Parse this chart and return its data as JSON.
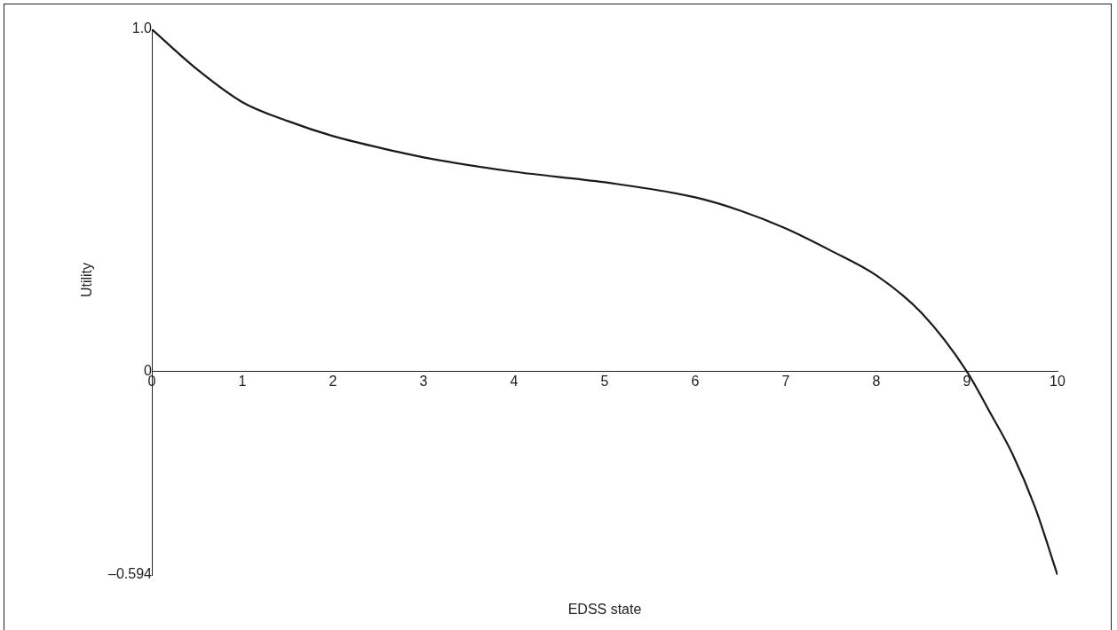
{
  "chart_data": {
    "type": "line",
    "xlabel": "EDSS state",
    "ylabel": "Utility",
    "x": [
      0,
      0.5,
      1,
      1.5,
      2,
      2.5,
      3,
      4,
      5,
      6,
      6.5,
      7,
      7.5,
      8,
      8.5,
      9,
      9.25,
      9.5,
      9.75,
      10
    ],
    "series": [
      {
        "color": "#1a1a1a",
        "values": [
          1.0,
          0.883,
          0.787,
          0.732,
          0.688,
          0.655,
          0.626,
          0.584,
          0.553,
          0.509,
          0.47,
          0.418,
          0.353,
          0.281,
          0.171,
          0,
          -0.117,
          -0.239,
          -0.395,
          -0.594
        ]
      }
    ],
    "xlim": [
      0,
      10
    ],
    "xticks": [
      0,
      1,
      2,
      3,
      4,
      5,
      6,
      7,
      8,
      9,
      10
    ],
    "ylim": [
      -0.594,
      1.0
    ],
    "yticks": [
      {
        "value": 1.0,
        "label": "1.0"
      },
      0,
      {
        "value": -0.594,
        "label": "–0.594"
      }
    ],
    "grid": false,
    "legend": false,
    "marker": "none",
    "line_style": "solid"
  }
}
